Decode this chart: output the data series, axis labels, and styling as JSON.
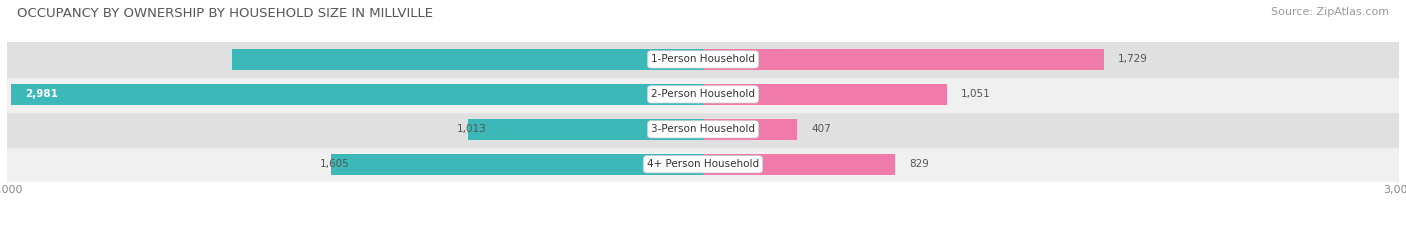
{
  "title": "OCCUPANCY BY OWNERSHIP BY HOUSEHOLD SIZE IN MILLVILLE",
  "source": "Source: ZipAtlas.com",
  "categories": [
    "1-Person Household",
    "2-Person Household",
    "3-Person Household",
    "4+ Person Household"
  ],
  "owner_values": [
    2031,
    2981,
    1013,
    1605
  ],
  "renter_values": [
    1729,
    1051,
    407,
    829
  ],
  "max_scale": 3000,
  "owner_color": "#3db8b8",
  "renter_color": "#f07aaa",
  "row_bg_light": "#f0f0f0",
  "row_bg_dark": "#e0e0e0",
  "title_fontsize": 9.5,
  "source_fontsize": 8,
  "label_fontsize": 7.5,
  "value_fontsize": 7.5,
  "axis_label_fontsize": 8
}
